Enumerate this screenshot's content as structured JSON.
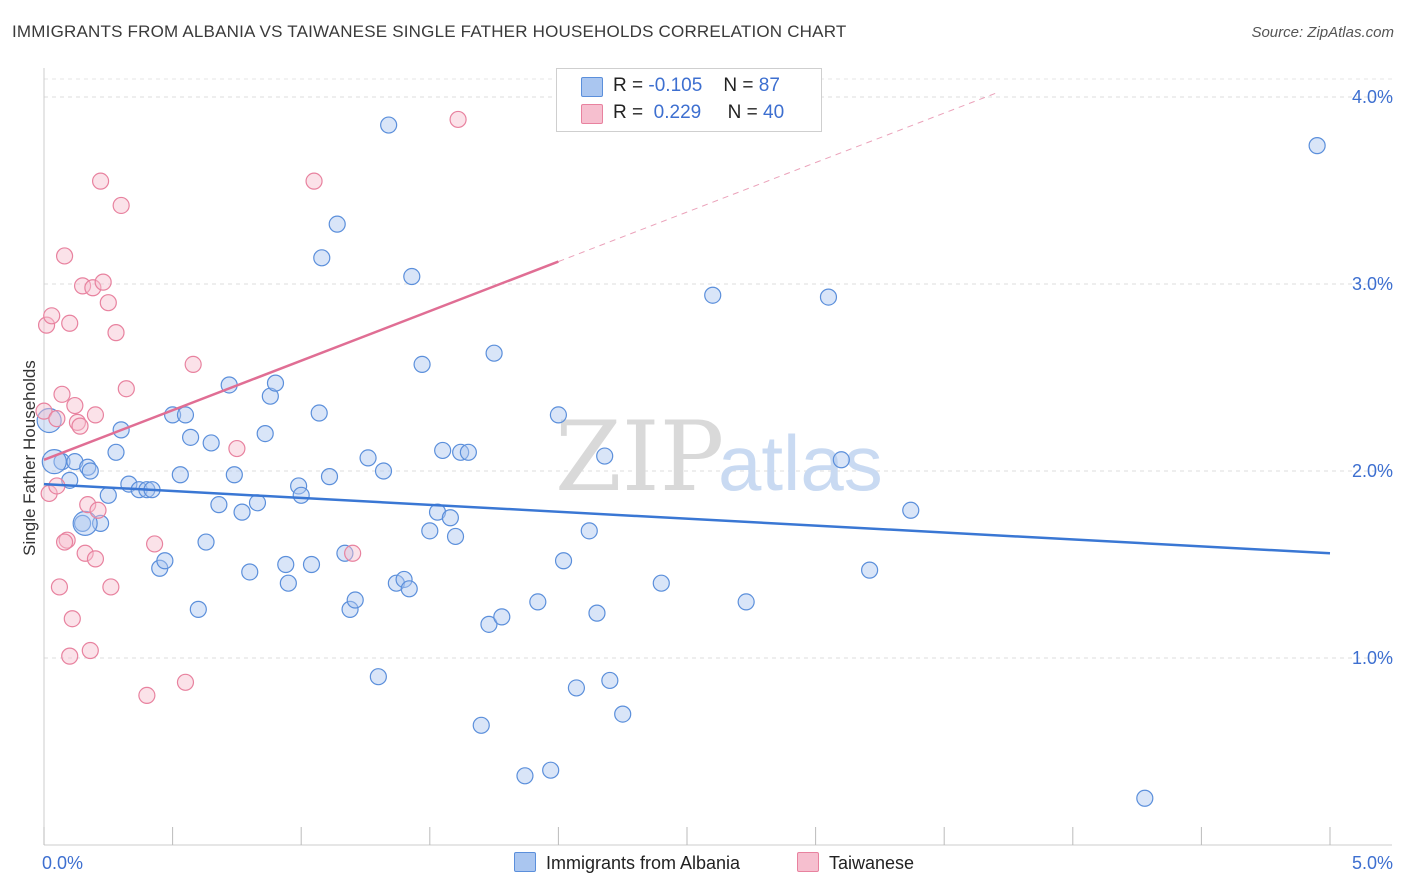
{
  "chart_data": {
    "type": "scatter",
    "title": "IMMIGRANTS FROM ALBANIA VS TAIWANESE SINGLE FATHER HOUSEHOLDS CORRELATION CHART",
    "source": "Source: ZipAtlas.com",
    "ylabel": "Single Father Households",
    "xlabel": "",
    "x_tick_labels": {
      "left": "0.0%",
      "right": "5.0%"
    },
    "y_tick_labels": [
      "4.0%",
      "3.0%",
      "2.0%",
      "1.0%"
    ],
    "y_ticks": [
      4.0,
      3.0,
      2.0,
      1.0
    ],
    "xlim": [
      0,
      5
    ],
    "ylim": [
      0,
      4.1
    ],
    "watermark": {
      "zip": "ZIP",
      "atlas": "atlas"
    },
    "legend": [
      {
        "r_label": "R =",
        "r": "-0.105",
        "n_label": "N =",
        "n": "87"
      },
      {
        "r_label": "R =",
        "r": "0.229",
        "n_label": "N =",
        "n": "40"
      }
    ],
    "series": [
      {
        "name": "Immigrants from Albania",
        "color": "#5b8fdb",
        "fill": "#aac6f0",
        "trend": {
          "x": [
            0,
            5.0
          ],
          "y": [
            1.93,
            1.56
          ],
          "style": "solid"
        },
        "points": [
          [
            0.02,
            2.27
          ],
          [
            0.07,
            2.05
          ],
          [
            0.1,
            1.95
          ],
          [
            0.12,
            2.05
          ],
          [
            0.15,
            1.72
          ],
          [
            0.17,
            2.02
          ],
          [
            0.18,
            2.0
          ],
          [
            0.22,
            1.72
          ],
          [
            0.25,
            1.87
          ],
          [
            0.28,
            2.1
          ],
          [
            0.3,
            2.22
          ],
          [
            0.33,
            1.93
          ],
          [
            0.37,
            1.9
          ],
          [
            0.4,
            1.9
          ],
          [
            0.42,
            1.9
          ],
          [
            0.45,
            1.48
          ],
          [
            0.47,
            1.52
          ],
          [
            0.5,
            2.3
          ],
          [
            0.53,
            1.98
          ],
          [
            0.55,
            2.3
          ],
          [
            0.57,
            2.18
          ],
          [
            0.6,
            1.26
          ],
          [
            0.63,
            1.62
          ],
          [
            0.65,
            2.15
          ],
          [
            0.68,
            1.82
          ],
          [
            0.72,
            2.46
          ],
          [
            0.74,
            1.98
          ],
          [
            0.77,
            1.78
          ],
          [
            0.8,
            1.46
          ],
          [
            0.83,
            1.83
          ],
          [
            0.86,
            2.2
          ],
          [
            0.88,
            2.4
          ],
          [
            0.9,
            2.47
          ],
          [
            0.94,
            1.5
          ],
          [
            0.95,
            1.4
          ],
          [
            0.99,
            1.92
          ],
          [
            1.0,
            1.87
          ],
          [
            1.04,
            1.5
          ],
          [
            1.07,
            2.31
          ],
          [
            1.08,
            3.14
          ],
          [
            1.11,
            1.97
          ],
          [
            1.14,
            3.32
          ],
          [
            1.17,
            1.56
          ],
          [
            1.19,
            1.26
          ],
          [
            1.21,
            1.31
          ],
          [
            1.26,
            2.07
          ],
          [
            1.3,
            0.9
          ],
          [
            1.32,
            2.0
          ],
          [
            1.34,
            3.85
          ],
          [
            1.37,
            1.4
          ],
          [
            1.4,
            1.42
          ],
          [
            1.42,
            1.37
          ],
          [
            1.43,
            3.04
          ],
          [
            1.47,
            2.57
          ],
          [
            1.5,
            1.68
          ],
          [
            1.53,
            1.78
          ],
          [
            1.55,
            2.11
          ],
          [
            1.58,
            1.75
          ],
          [
            1.6,
            1.65
          ],
          [
            1.62,
            2.1
          ],
          [
            1.65,
            2.1
          ],
          [
            1.7,
            0.64
          ],
          [
            1.73,
            1.18
          ],
          [
            1.75,
            2.63
          ],
          [
            1.78,
            1.22
          ],
          [
            1.87,
            0.37
          ],
          [
            1.92,
            1.3
          ],
          [
            1.97,
            0.4
          ],
          [
            2.0,
            2.3
          ],
          [
            2.02,
            1.52
          ],
          [
            2.07,
            0.84
          ],
          [
            2.12,
            1.68
          ],
          [
            2.15,
            1.24
          ],
          [
            2.18,
            2.08
          ],
          [
            2.2,
            0.88
          ],
          [
            2.25,
            0.7
          ],
          [
            2.4,
            1.4
          ],
          [
            2.6,
            2.94
          ],
          [
            2.73,
            1.3
          ],
          [
            3.05,
            2.93
          ],
          [
            3.1,
            2.06
          ],
          [
            3.21,
            1.47
          ],
          [
            3.37,
            1.79
          ],
          [
            4.28,
            0.25
          ],
          [
            4.95,
            3.74
          ],
          [
            0.04,
            2.05
          ],
          [
            0.16,
            1.72
          ]
        ]
      },
      {
        "name": "Taiwanese",
        "color": "#e8829f",
        "fill": "#f6bfcf",
        "trend": {
          "x": [
            0,
            2.0
          ],
          "y": [
            2.06,
            3.12
          ],
          "style": "solid",
          "dash_to_x": 3.7,
          "dash_to_y": 4.02
        },
        "points": [
          [
            0.0,
            2.32
          ],
          [
            0.01,
            2.78
          ],
          [
            0.02,
            1.88
          ],
          [
            0.03,
            2.83
          ],
          [
            0.05,
            2.28
          ],
          [
            0.06,
            1.38
          ],
          [
            0.07,
            2.41
          ],
          [
            0.08,
            3.15
          ],
          [
            0.09,
            1.63
          ],
          [
            0.1,
            1.01
          ],
          [
            0.1,
            2.79
          ],
          [
            0.11,
            1.21
          ],
          [
            0.12,
            2.35
          ],
          [
            0.13,
            2.26
          ],
          [
            0.14,
            2.24
          ],
          [
            0.15,
            2.99
          ],
          [
            0.16,
            1.56
          ],
          [
            0.17,
            1.82
          ],
          [
            0.18,
            1.04
          ],
          [
            0.19,
            2.98
          ],
          [
            0.2,
            1.53
          ],
          [
            0.21,
            1.79
          ],
          [
            0.22,
            3.55
          ],
          [
            0.23,
            3.01
          ],
          [
            0.25,
            2.9
          ],
          [
            0.26,
            1.38
          ],
          [
            0.28,
            2.74
          ],
          [
            0.3,
            3.42
          ],
          [
            0.32,
            2.44
          ],
          [
            0.4,
            0.8
          ],
          [
            0.43,
            1.61
          ],
          [
            0.55,
            0.87
          ],
          [
            0.58,
            2.57
          ],
          [
            0.75,
            2.12
          ],
          [
            1.05,
            3.55
          ],
          [
            1.2,
            1.56
          ],
          [
            1.61,
            3.88
          ],
          [
            0.05,
            1.92
          ],
          [
            0.08,
            1.62
          ],
          [
            0.2,
            2.3
          ]
        ]
      }
    ]
  },
  "bottom_legend": [
    "Immigrants from Albania",
    "Taiwanese"
  ]
}
